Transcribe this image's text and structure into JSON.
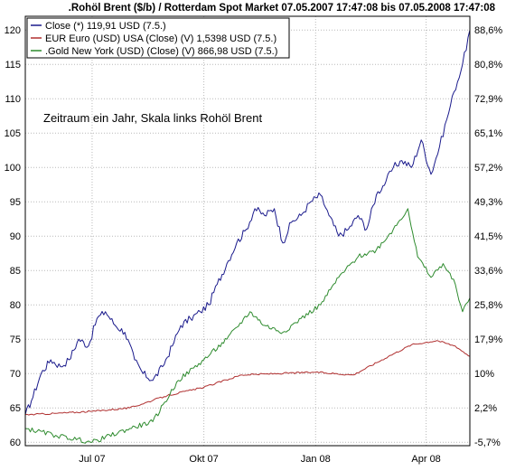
{
  "chart_data": {
    "type": "line",
    "title": ".Rohöl Brent ($/b) / Rotterdam Spot Market 07.05.2007 17:47:08 bis 07.05.2008 17:47:08",
    "annotation": "Zeitraum ein Jahr, Skala links Rohöl Brent",
    "x_ticks": [
      "Jul 07",
      "Okt 07",
      "Jan 08",
      "Apr 08"
    ],
    "x_range": [
      "2007-05-07",
      "2008-05-07"
    ],
    "y_left_ticks": [
      60,
      65,
      70,
      75,
      80,
      85,
      90,
      95,
      100,
      105,
      110,
      115,
      120
    ],
    "y_left_range": [
      59.5,
      122
    ],
    "y_right_ticks": [
      "-5,7%",
      "2,2%",
      "10%",
      "17,9%",
      "25,8%",
      "33,6%",
      "41,5%",
      "49,3%",
      "57,2%",
      "65,1%",
      "72,9%",
      "80,8%",
      "88,6%"
    ],
    "grid": true,
    "legend_position": "top-left",
    "series": [
      {
        "name": "Close (*) 119,91 USD (7.5.)",
        "color": "#1a1a8c",
        "x": [
          "2007-05-07",
          "2007-05-12",
          "2007-05-20",
          "2007-05-28",
          "2007-06-05",
          "2007-06-12",
          "2007-06-20",
          "2007-06-28",
          "2007-07-05",
          "2007-07-12",
          "2007-07-20",
          "2007-07-28",
          "2007-08-05",
          "2007-08-12",
          "2007-08-20",
          "2007-08-28",
          "2007-09-05",
          "2007-09-12",
          "2007-09-20",
          "2007-09-28",
          "2007-10-05",
          "2007-10-12",
          "2007-10-20",
          "2007-10-28",
          "2007-11-05",
          "2007-11-12",
          "2007-11-20",
          "2007-11-28",
          "2007-12-05",
          "2007-12-12",
          "2007-12-20",
          "2007-12-28",
          "2008-01-05",
          "2008-01-12",
          "2008-01-20",
          "2008-01-28",
          "2008-02-05",
          "2008-02-12",
          "2008-02-20",
          "2008-02-28",
          "2008-03-05",
          "2008-03-12",
          "2008-03-20",
          "2008-03-28",
          "2008-04-05",
          "2008-04-12",
          "2008-04-18",
          "2008-04-24",
          "2008-05-01",
          "2008-05-07"
        ],
        "values": [
          64,
          66,
          70,
          72,
          71,
          72,
          75,
          74,
          78,
          79,
          77,
          76,
          72,
          70,
          69,
          71,
          74,
          77,
          78,
          79,
          80,
          83,
          86,
          89,
          91,
          94,
          93,
          94,
          89,
          92,
          93,
          95,
          96,
          93,
          90,
          91,
          93,
          91,
          96,
          98,
          100,
          101,
          100,
          104,
          99,
          103,
          107,
          111,
          115,
          120
        ]
      },
      {
        "name": "EUR Euro (USD) USA (Close) (V) 1,5398 USD (7.5.)",
        "color": "#b03030",
        "x": [
          "2007-05-07",
          "2007-06-01",
          "2007-07-01",
          "2007-08-01",
          "2007-09-01",
          "2007-10-01",
          "2007-11-01",
          "2007-12-01",
          "2008-01-01",
          "2008-02-01",
          "2008-03-01",
          "2008-03-20",
          "2008-04-10",
          "2008-04-25",
          "2008-05-07"
        ],
        "values": [
          64,
          64.2,
          64.5,
          65,
          66.8,
          68,
          69.8,
          70,
          70.2,
          69.8,
          72.5,
          74.2,
          74.8,
          74,
          72.5
        ]
      },
      {
        "name": ".Gold New York (USD) (Close) (V) 866,98 USD (7.5.)",
        "color": "#2e8b2e",
        "x": [
          "2007-05-07",
          "2007-06-01",
          "2007-07-01",
          "2007-08-01",
          "2007-08-20",
          "2007-09-10",
          "2007-10-01",
          "2007-10-20",
          "2007-11-08",
          "2007-11-20",
          "2007-12-05",
          "2007-12-20",
          "2008-01-05",
          "2008-01-20",
          "2008-02-05",
          "2008-02-20",
          "2008-03-05",
          "2008-03-17",
          "2008-03-25",
          "2008-04-05",
          "2008-04-15",
          "2008-04-25",
          "2008-05-01",
          "2008-05-07"
        ],
        "values": [
          62,
          61,
          60,
          62,
          63,
          69,
          72,
          75,
          79,
          77,
          76,
          78,
          80,
          84,
          87,
          88,
          91,
          94,
          87,
          84,
          86,
          83,
          79,
          81
        ]
      }
    ]
  }
}
